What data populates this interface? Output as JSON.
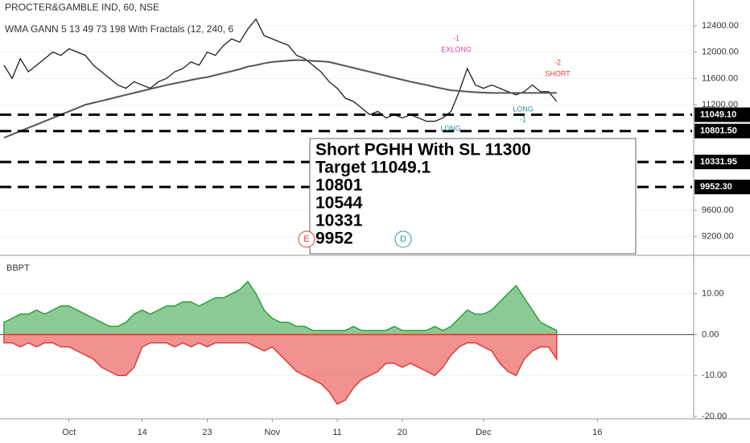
{
  "chart_data": [
    {
      "type": "line",
      "title": "PROCTER&GAMBLE IND, 60, NSE",
      "subtitle": "WMA GANN 5 13 49 73 198 With Fractals (12, 240, 6",
      "series": [
        {
          "color": "#1e1e1e",
          "values": [
            11800,
            11600,
            11900,
            11700,
            11800,
            11900,
            12000,
            11950,
            12050,
            12000,
            11950,
            11800,
            11700,
            11600,
            11500,
            11450,
            11550,
            11500,
            11450,
            11550,
            11600,
            11700,
            11750,
            11850,
            11800,
            12000,
            11950,
            12100,
            12200,
            12150,
            12350,
            12500,
            12250,
            12200,
            12150,
            12100,
            11950,
            11900,
            11800,
            11700,
            11550,
            11450,
            11300,
            11250,
            11150,
            11050,
            11100,
            11000,
            11050,
            11000,
            11050,
            11000,
            10950,
            10950,
            11000,
            11100,
            11400,
            11750,
            11500,
            11450,
            11500,
            11450,
            11400,
            11350,
            11400,
            11500,
            11400,
            11400,
            11250,
            null,
            null,
            null,
            null,
            null,
            null,
            null,
            null,
            null,
            null,
            null,
            null,
            null,
            null,
            null,
            null
          ]
        },
        {
          "color": "#555555",
          "values": [
            10700,
            10750,
            10800,
            10850,
            10900,
            10950,
            11000,
            11050,
            11100,
            11150,
            11200,
            11230,
            11260,
            11290,
            11320,
            11350,
            11380,
            11410,
            11440,
            11470,
            11500,
            11525,
            11550,
            11575,
            11600,
            11620,
            11650,
            11680,
            11710,
            11740,
            11780,
            11800,
            11830,
            11850,
            11860,
            11870,
            11880,
            11875,
            11865,
            11860,
            11850,
            11820,
            11790,
            11760,
            11730,
            11700,
            11670,
            11640,
            11610,
            11580,
            11550,
            11525,
            11500,
            11470,
            11445,
            11420,
            11410,
            11400,
            11390,
            11385,
            11380,
            11380,
            11380,
            11380,
            11380,
            11380,
            11380,
            11380,
            11380,
            null,
            null,
            null,
            null,
            null,
            null,
            null,
            null,
            null,
            null,
            null,
            null,
            null,
            null,
            null,
            null
          ]
        }
      ],
      "ylim": [
        8940,
        12790
      ],
      "yticks": [
        {
          "value": 9200,
          "label": "9200.00"
        },
        {
          "value": 9600,
          "label": "9600.00"
        },
        {
          "value": 11200,
          "label": "11200.00"
        },
        {
          "value": 11600,
          "label": "11600.00"
        },
        {
          "value": 12000,
          "label": "12000.00"
        },
        {
          "value": 12400,
          "label": "12400.00"
        }
      ],
      "levels": [
        {
          "value": 11049.1,
          "label": "11049.10"
        },
        {
          "value": 10801.5,
          "label": "10801.50"
        },
        {
          "value": 10331.95,
          "label": "10331.95"
        },
        {
          "value": 9952.3,
          "label": "9952.30"
        }
      ],
      "grid": true,
      "note": [
        "Short PGHH With SL 11300",
        "Target 11049.1",
        "10801",
        "10544",
        "10331",
        "9952"
      ],
      "annotations": [
        "-1",
        "EXLONG",
        "-2",
        "SHORT",
        "LONG",
        "-1",
        "LONG",
        "E",
        "D"
      ]
    },
    {
      "type": "area",
      "title": "BBPT",
      "categories": [
        null,
        null,
        null,
        null,
        null,
        null,
        null,
        null,
        "Oct",
        null,
        null,
        null,
        null,
        null,
        null,
        null,
        null,
        "14",
        null,
        null,
        null,
        null,
        null,
        null,
        null,
        "23",
        null,
        null,
        null,
        null,
        null,
        null,
        null,
        "Nov",
        null,
        null,
        null,
        null,
        null,
        null,
        null,
        "11",
        null,
        null,
        null,
        null,
        null,
        null,
        null,
        "20",
        null,
        null,
        null,
        null,
        null,
        null,
        null,
        null,
        null,
        "Dec",
        null,
        null,
        null,
        null,
        null,
        null,
        null,
        null,
        null,
        null,
        null,
        null,
        null,
        "16",
        null,
        null,
        null,
        null,
        null,
        null,
        null,
        null,
        null,
        null,
        null
      ],
      "series": [
        {
          "color": "#2e9e3e",
          "values": [
            3,
            4,
            5,
            5,
            6,
            5,
            6,
            7,
            7,
            6,
            5,
            4,
            3,
            2,
            2,
            3,
            5,
            6,
            5,
            6,
            7,
            7,
            8,
            8,
            7,
            8,
            9,
            9,
            10,
            11,
            13,
            10,
            6,
            4,
            3,
            3,
            2,
            2,
            1,
            1,
            1,
            1,
            1,
            2,
            1,
            1,
            1,
            1,
            2,
            1,
            1,
            1,
            1,
            2,
            1,
            2,
            4,
            6,
            5,
            5,
            6,
            8,
            10,
            12,
            9,
            6,
            3,
            2,
            1,
            null,
            null,
            null,
            null,
            null,
            null,
            null,
            null,
            null,
            null,
            null,
            null,
            null,
            null,
            null,
            null
          ]
        },
        {
          "color": "#e53935",
          "values": [
            -2,
            -2,
            -3,
            -2,
            -3,
            -2,
            -2,
            -3,
            -3,
            -4,
            -5,
            -6,
            -8,
            -9,
            -10,
            -10,
            -8,
            -3,
            -2,
            -2,
            -2,
            -3,
            -2,
            -3,
            -2,
            -3,
            -2,
            -2,
            -2,
            -2,
            -2,
            -3,
            -4,
            -3,
            -5,
            -7,
            -9,
            -10,
            -11,
            -12,
            -14,
            -17,
            -16,
            -13,
            -11,
            -10,
            -9,
            -7,
            -7,
            -8,
            -7,
            -8,
            -9,
            -10,
            -8,
            -5,
            -3,
            -2,
            -2,
            -3,
            -4,
            -7,
            -9,
            -10,
            -6,
            -4,
            -3,
            -3,
            -6,
            null,
            null,
            null,
            null,
            null,
            null,
            null,
            null,
            null,
            null,
            null,
            null,
            null,
            null,
            null,
            null
          ]
        }
      ],
      "ylim": [
        -20.6,
        18.8
      ],
      "yticks": [
        {
          "value": -20,
          "label": "-20.00"
        },
        {
          "value": -10,
          "label": "-10.00"
        },
        {
          "value": 0,
          "label": "0.00"
        },
        {
          "value": 10,
          "label": "10.00"
        }
      ],
      "grid": true
    }
  ]
}
